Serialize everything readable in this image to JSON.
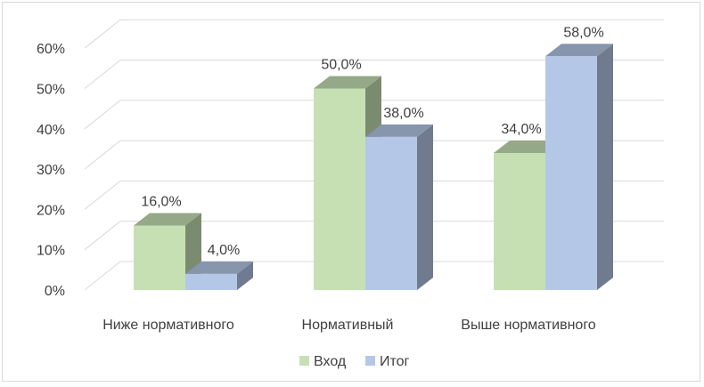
{
  "chart_data": {
    "type": "bar",
    "title": "",
    "xlabel": "",
    "ylabel": "",
    "ylim": [
      0,
      60
    ],
    "yticks": [
      "0%",
      "10%",
      "20%",
      "30%",
      "40%",
      "50%",
      "60%"
    ],
    "categories": [
      "Ниже нормативного",
      "Нормативный",
      "Выше нормативного"
    ],
    "series": [
      {
        "name": "Вход",
        "values": [
          16.0,
          50.0,
          34.0
        ],
        "labels": [
          "16,0%",
          "50,0%",
          "34,0%"
        ],
        "color": "#c6e0b4"
      },
      {
        "name": "Итог",
        "values": [
          4.0,
          38.0,
          58.0
        ],
        "labels": [
          "4,0%",
          "38,0%",
          "58,0%"
        ],
        "color": "#b4c7e7"
      }
    ],
    "legend_position": "bottom",
    "grid": true,
    "style": "3d-clustered-column"
  }
}
